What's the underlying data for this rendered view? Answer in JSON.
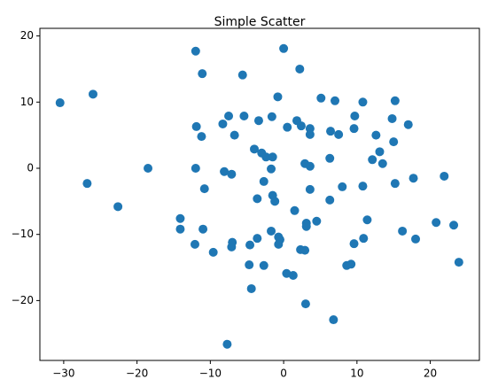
{
  "chart_data": {
    "type": "scatter",
    "title": "Simple Scatter",
    "color": "#1f77b4",
    "xlim": [
      -33.25,
      26.7
    ],
    "ylim": [
      -29.05,
      21.15
    ],
    "xticks": [
      {
        "value": -30,
        "label": "−30"
      },
      {
        "value": -20,
        "label": "−20"
      },
      {
        "value": -10,
        "label": "−10"
      },
      0,
      10,
      20
    ],
    "yticks": [
      {
        "value": -20,
        "label": "−20"
      },
      {
        "value": -10,
        "label": "−10"
      },
      0,
      10,
      20
    ],
    "x": [
      -30.5,
      -26.0,
      -26.8,
      -22.6,
      -18.5,
      -14.1,
      -14.1,
      -12.0,
      -11.1,
      -11.9,
      -11.2,
      -12.0,
      -10.8,
      -11.0,
      -12.1,
      -9.6,
      -8.3,
      -7.5,
      -6.7,
      -8.1,
      -7.1,
      -7.0,
      -7.1,
      -7.7,
      -5.6,
      -5.4,
      -3.4,
      -1.6,
      -0.8,
      0,
      2.2,
      -4.0,
      -3.0,
      -2.4,
      -1.5,
      -1.7,
      -2.7,
      -3.6,
      -1.5,
      -1.2,
      -4.6,
      -3.6,
      -1.7,
      -0.7,
      -0.5,
      -0.7,
      -4.7,
      -2.7,
      -4.4,
      0.4,
      1.3,
      0.5,
      1.8,
      2.4,
      3.6,
      3.6,
      2.9,
      3.6,
      3.6,
      1.5,
      3.1,
      3.1,
      2.3,
      2.9,
      4.5,
      3.0,
      5.1,
      7.0,
      6.4,
      7.5,
      6.3,
      8.0,
      6.3,
      6.8,
      8.6,
      9.2,
      9.6,
      9.7,
      9.6,
      10.8,
      10.8,
      11.4,
      10.9,
      12.1,
      12.6,
      13.1,
      13.5,
      14.8,
      15.2,
      15.0,
      15.2,
      17.0,
      17.7,
      16.2,
      18.0,
      20.8,
      21.9,
      23.2,
      23.9
    ],
    "values": [
      9.9,
      11.2,
      -2.3,
      -5.8,
      0,
      -7.6,
      -9.2,
      17.7,
      14.3,
      6.3,
      4.8,
      0,
      -3.1,
      -9.2,
      -11.5,
      -12.7,
      6.7,
      7.9,
      5.0,
      -0.5,
      -0.9,
      -11.2,
      -11.9,
      -26.6,
      14.1,
      7.9,
      7.2,
      7.8,
      10.8,
      18.1,
      15.0,
      2.9,
      2.3,
      1.7,
      1.7,
      -0.1,
      -2.0,
      -4.6,
      -4.1,
      -5.0,
      -11.6,
      -10.6,
      -9.5,
      -10.4,
      -10.8,
      -11.5,
      -14.6,
      -14.7,
      -18.2,
      -15.9,
      -16.2,
      6.2,
      7.2,
      6.4,
      6.0,
      5.1,
      0.7,
      0.3,
      -3.2,
      -6.4,
      -8.3,
      -8.8,
      -12.3,
      -12.4,
      -8.0,
      -20.5,
      10.6,
      10.2,
      5.6,
      5.1,
      1.5,
      -2.8,
      -4.8,
      -22.9,
      -14.7,
      -14.5,
      -11.4,
      7.9,
      6.0,
      10.0,
      -2.7,
      -7.8,
      -10.6,
      1.3,
      5.0,
      2.5,
      0.7,
      7.5,
      10.2,
      4.0,
      -2.3,
      6.6,
      -1.5,
      -9.5,
      -10.7,
      -8.2,
      -1.2,
      -8.6,
      -14.2
    ]
  }
}
